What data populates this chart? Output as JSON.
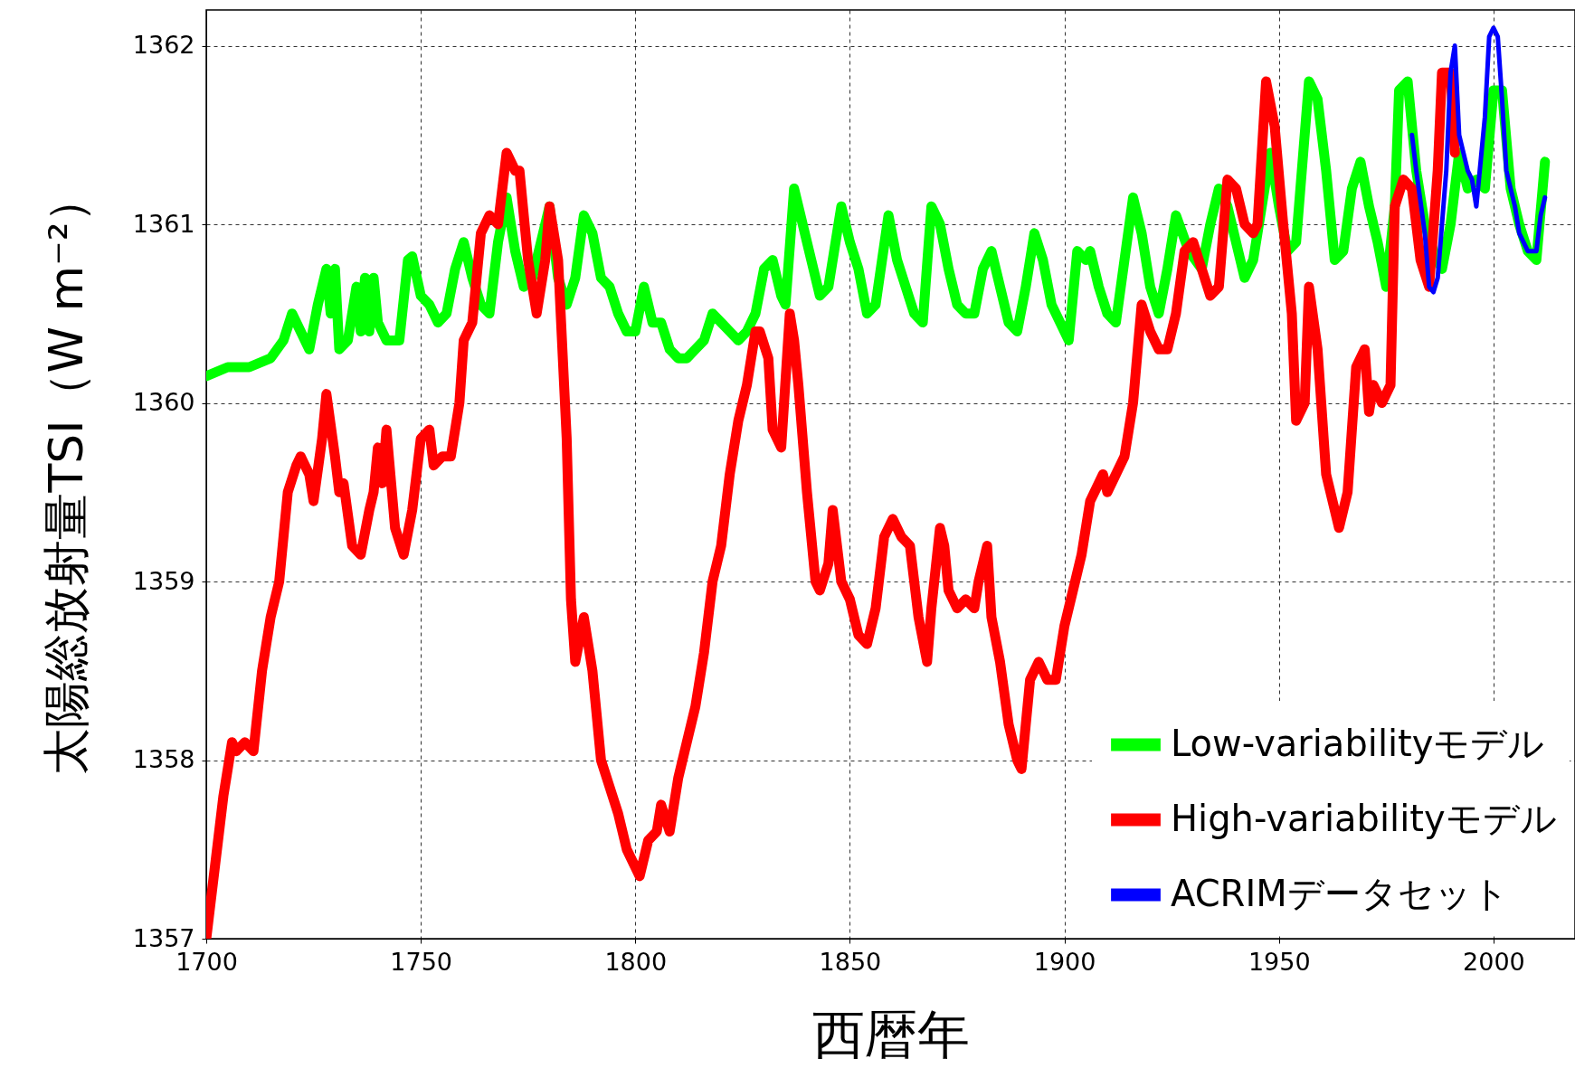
{
  "chart_data": {
    "type": "line",
    "xlabel": "西暦年",
    "ylabel": "太陽総放射量TSI（W m⁻²）",
    "xlim": [
      1700,
      2019
    ],
    "ylim": [
      1357,
      1362.2
    ],
    "xticks": [
      1700,
      1750,
      1800,
      1850,
      1900,
      1950,
      2000
    ],
    "yticks": [
      1357,
      1358,
      1359,
      1360,
      1361,
      1362
    ],
    "grid": true,
    "legend": "bottom right",
    "series": [
      {
        "name": "Low-variabilityモデル",
        "color": "#00ff00",
        "x": [
          1700,
          1705,
          1710,
          1715,
          1718,
          1720,
          1722,
          1724,
          1726,
          1728,
          1729,
          1730,
          1731,
          1733,
          1735,
          1736,
          1737,
          1738,
          1739,
          1740,
          1742,
          1745,
          1747,
          1748,
          1750,
          1752,
          1754,
          1756,
          1758,
          1760,
          1762,
          1764,
          1766,
          1768,
          1770,
          1772,
          1774,
          1776,
          1778,
          1780,
          1782,
          1784,
          1786,
          1788,
          1790,
          1792,
          1794,
          1796,
          1798,
          1800,
          1802,
          1804,
          1806,
          1808,
          1810,
          1812,
          1814,
          1816,
          1818,
          1820,
          1822,
          1824,
          1826,
          1828,
          1830,
          1832,
          1834,
          1835,
          1837,
          1839,
          1841,
          1843,
          1845,
          1848,
          1850,
          1852,
          1854,
          1856,
          1859,
          1861,
          1863,
          1865,
          1867,
          1869,
          1871,
          1873,
          1875,
          1877,
          1879,
          1881,
          1883,
          1885,
          1887,
          1889,
          1891,
          1893,
          1895,
          1897,
          1899,
          1901,
          1903,
          1905,
          1906,
          1908,
          1910,
          1912,
          1914,
          1916,
          1918,
          1920,
          1922,
          1924,
          1926,
          1929,
          1932,
          1934,
          1936,
          1938,
          1940,
          1942,
          1944,
          1946,
          1948,
          1950,
          1952,
          1954,
          1957,
          1959,
          1961,
          1963,
          1965,
          1967,
          1969,
          1971,
          1973,
          1975,
          1977,
          1978,
          1980,
          1982,
          1984,
          1986,
          1988,
          1990,
          1992,
          1994,
          1996,
          1998,
          2000,
          2002,
          2004,
          2006,
          2008,
          2010,
          2012
        ],
        "values": [
          1360.15,
          1360.2,
          1360.2,
          1360.25,
          1360.35,
          1360.5,
          1360.4,
          1360.3,
          1360.55,
          1360.75,
          1360.5,
          1360.75,
          1360.3,
          1360.35,
          1360.65,
          1360.4,
          1360.7,
          1360.4,
          1360.7,
          1360.45,
          1360.35,
          1360.35,
          1360.8,
          1360.82,
          1360.6,
          1360.55,
          1360.45,
          1360.5,
          1360.75,
          1360.9,
          1360.7,
          1360.55,
          1360.5,
          1360.9,
          1361.15,
          1360.85,
          1360.65,
          1360.7,
          1360.9,
          1361.1,
          1360.7,
          1360.55,
          1360.7,
          1361.05,
          1360.95,
          1360.7,
          1360.65,
          1360.5,
          1360.4,
          1360.4,
          1360.65,
          1360.45,
          1360.45,
          1360.3,
          1360.25,
          1360.25,
          1360.3,
          1360.35,
          1360.5,
          1360.45,
          1360.4,
          1360.35,
          1360.4,
          1360.5,
          1360.75,
          1360.8,
          1360.6,
          1360.55,
          1361.2,
          1361,
          1360.8,
          1360.6,
          1360.65,
          1361.1,
          1360.9,
          1360.75,
          1360.5,
          1360.55,
          1361.05,
          1360.8,
          1360.65,
          1360.5,
          1360.45,
          1361.1,
          1361,
          1360.75,
          1360.55,
          1360.5,
          1360.5,
          1360.75,
          1360.85,
          1360.65,
          1360.45,
          1360.4,
          1360.65,
          1360.95,
          1360.8,
          1360.55,
          1360.45,
          1360.35,
          1360.85,
          1360.8,
          1360.85,
          1360.65,
          1360.5,
          1360.45,
          1360.8,
          1361.15,
          1360.95,
          1360.65,
          1360.5,
          1360.75,
          1361.05,
          1360.85,
          1360.75,
          1361,
          1361.2,
          1361.1,
          1360.9,
          1360.7,
          1360.8,
          1361.1,
          1361.4,
          1361.1,
          1360.85,
          1360.9,
          1361.8,
          1361.7,
          1361.3,
          1360.8,
          1360.85,
          1361.2,
          1361.35,
          1361.1,
          1360.9,
          1360.65,
          1361.1,
          1361.75,
          1361.8,
          1361.3,
          1361,
          1360.85,
          1360.75,
          1361,
          1361.4,
          1361.2,
          1361.25,
          1361.2,
          1361.75,
          1361.75,
          1361.2,
          1361,
          1360.85,
          1360.8,
          1361.35
        ]
      },
      {
        "name": "High-variabilityモデル",
        "color": "#ff0000",
        "x": [
          1700,
          1702,
          1704,
          1706,
          1707,
          1709,
          1711,
          1713,
          1715,
          1717,
          1719,
          1721,
          1722,
          1724,
          1725,
          1727,
          1728,
          1730,
          1731,
          1732,
          1734,
          1736,
          1738,
          1739,
          1740,
          1741,
          1742,
          1744,
          1746,
          1748,
          1750,
          1752,
          1753,
          1755,
          1757,
          1759,
          1760,
          1762,
          1763,
          1764,
          1766,
          1768,
          1770,
          1772,
          1773,
          1775,
          1777,
          1779,
          1780,
          1782,
          1784,
          1785,
          1786,
          1788,
          1790,
          1792,
          1794,
          1796,
          1798,
          1800,
          1801,
          1803,
          1805,
          1806,
          1808,
          1810,
          1812,
          1814,
          1816,
          1818,
          1820,
          1822,
          1824,
          1826,
          1828,
          1829,
          1831,
          1832,
          1834,
          1836,
          1837,
          1838,
          1840,
          1842,
          1843,
          1845,
          1846,
          1848,
          1850,
          1852,
          1854,
          1856,
          1858,
          1860,
          1862,
          1864,
          1866,
          1868,
          1869,
          1871,
          1872,
          1873,
          1875,
          1877,
          1879,
          1880,
          1882,
          1883,
          1885,
          1887,
          1889,
          1890,
          1892,
          1894,
          1896,
          1898,
          1900,
          1902,
          1904,
          1906,
          1907,
          1909,
          1910,
          1912,
          1914,
          1916,
          1918,
          1920,
          1922,
          1924,
          1926,
          1928,
          1930,
          1932,
          1934,
          1936,
          1938,
          1940,
          1942,
          1944,
          1945,
          1947,
          1949,
          1951,
          1953,
          1954,
          1956,
          1957,
          1959,
          1961,
          1963,
          1964,
          1966,
          1968,
          1970,
          1971,
          1972,
          1974,
          1976,
          1977,
          1979,
          1981,
          1983,
          1985,
          1987,
          1988,
          1990,
          1991
        ],
        "values": [
          1357,
          1357.4,
          1357.8,
          1358.1,
          1358.05,
          1358.1,
          1358.05,
          1358.5,
          1358.8,
          1359,
          1359.5,
          1359.65,
          1359.7,
          1359.6,
          1359.45,
          1359.8,
          1360.05,
          1359.7,
          1359.5,
          1359.55,
          1359.2,
          1359.15,
          1359.4,
          1359.5,
          1359.75,
          1359.55,
          1359.85,
          1359.3,
          1359.15,
          1359.4,
          1359.8,
          1359.85,
          1359.65,
          1359.7,
          1359.7,
          1360,
          1360.35,
          1360.45,
          1360.7,
          1360.95,
          1361.05,
          1361,
          1361.4,
          1361.3,
          1361.3,
          1360.8,
          1360.5,
          1360.8,
          1361.1,
          1360.8,
          1359.8,
          1358.9,
          1358.55,
          1358.8,
          1358.5,
          1358,
          1357.85,
          1357.7,
          1357.5,
          1357.4,
          1357.35,
          1357.55,
          1357.6,
          1357.75,
          1357.6,
          1357.9,
          1358.1,
          1358.3,
          1358.6,
          1359,
          1359.2,
          1359.6,
          1359.9,
          1360.1,
          1360.4,
          1360.4,
          1360.25,
          1359.85,
          1359.75,
          1360.5,
          1360.35,
          1360.1,
          1359.5,
          1359,
          1358.95,
          1359.1,
          1359.4,
          1359,
          1358.9,
          1358.7,
          1358.65,
          1358.85,
          1359.25,
          1359.35,
          1359.25,
          1359.2,
          1358.8,
          1358.55,
          1358.85,
          1359.3,
          1359.2,
          1358.95,
          1358.85,
          1358.9,
          1358.85,
          1359,
          1359.2,
          1358.8,
          1358.55,
          1358.2,
          1358,
          1357.95,
          1358.45,
          1358.55,
          1358.45,
          1358.45,
          1358.75,
          1358.95,
          1359.15,
          1359.45,
          1359.5,
          1359.6,
          1359.5,
          1359.6,
          1359.7,
          1360,
          1360.55,
          1360.4,
          1360.3,
          1360.3,
          1360.5,
          1360.85,
          1360.9,
          1360.75,
          1360.6,
          1360.65,
          1361.25,
          1361.2,
          1361,
          1360.95,
          1361,
          1361.8,
          1361.55,
          1361,
          1360.5,
          1359.9,
          1360,
          1360.65,
          1360.3,
          1359.6,
          1359.4,
          1359.3,
          1359.5,
          1360.2,
          1360.3,
          1359.95,
          1360.1,
          1360,
          1360.1,
          1361.1,
          1361.25,
          1361.2,
          1360.8,
          1360.65,
          1361.3,
          1361.85,
          1361.85,
          1361.4
        ]
      },
      {
        "name": "ACRIMデータセット",
        "color": "#0000ff",
        "x": [
          1981,
          1982,
          1984,
          1985,
          1986,
          1987,
          1989,
          1990,
          1991,
          1992,
          1994,
          1995,
          1996,
          1998,
          1999,
          2000,
          2001,
          2002,
          2003,
          2005,
          2006,
          2008,
          2010,
          2011,
          2012
        ],
        "values": [
          1361.5,
          1361.3,
          1360.95,
          1360.65,
          1360.62,
          1360.7,
          1361.3,
          1361.85,
          1362,
          1361.5,
          1361.3,
          1361.25,
          1361.1,
          1361.6,
          1362.05,
          1362.1,
          1362.05,
          1361.7,
          1361.3,
          1361.1,
          1360.95,
          1360.85,
          1360.85,
          1361.05,
          1361.15
        ]
      }
    ]
  }
}
